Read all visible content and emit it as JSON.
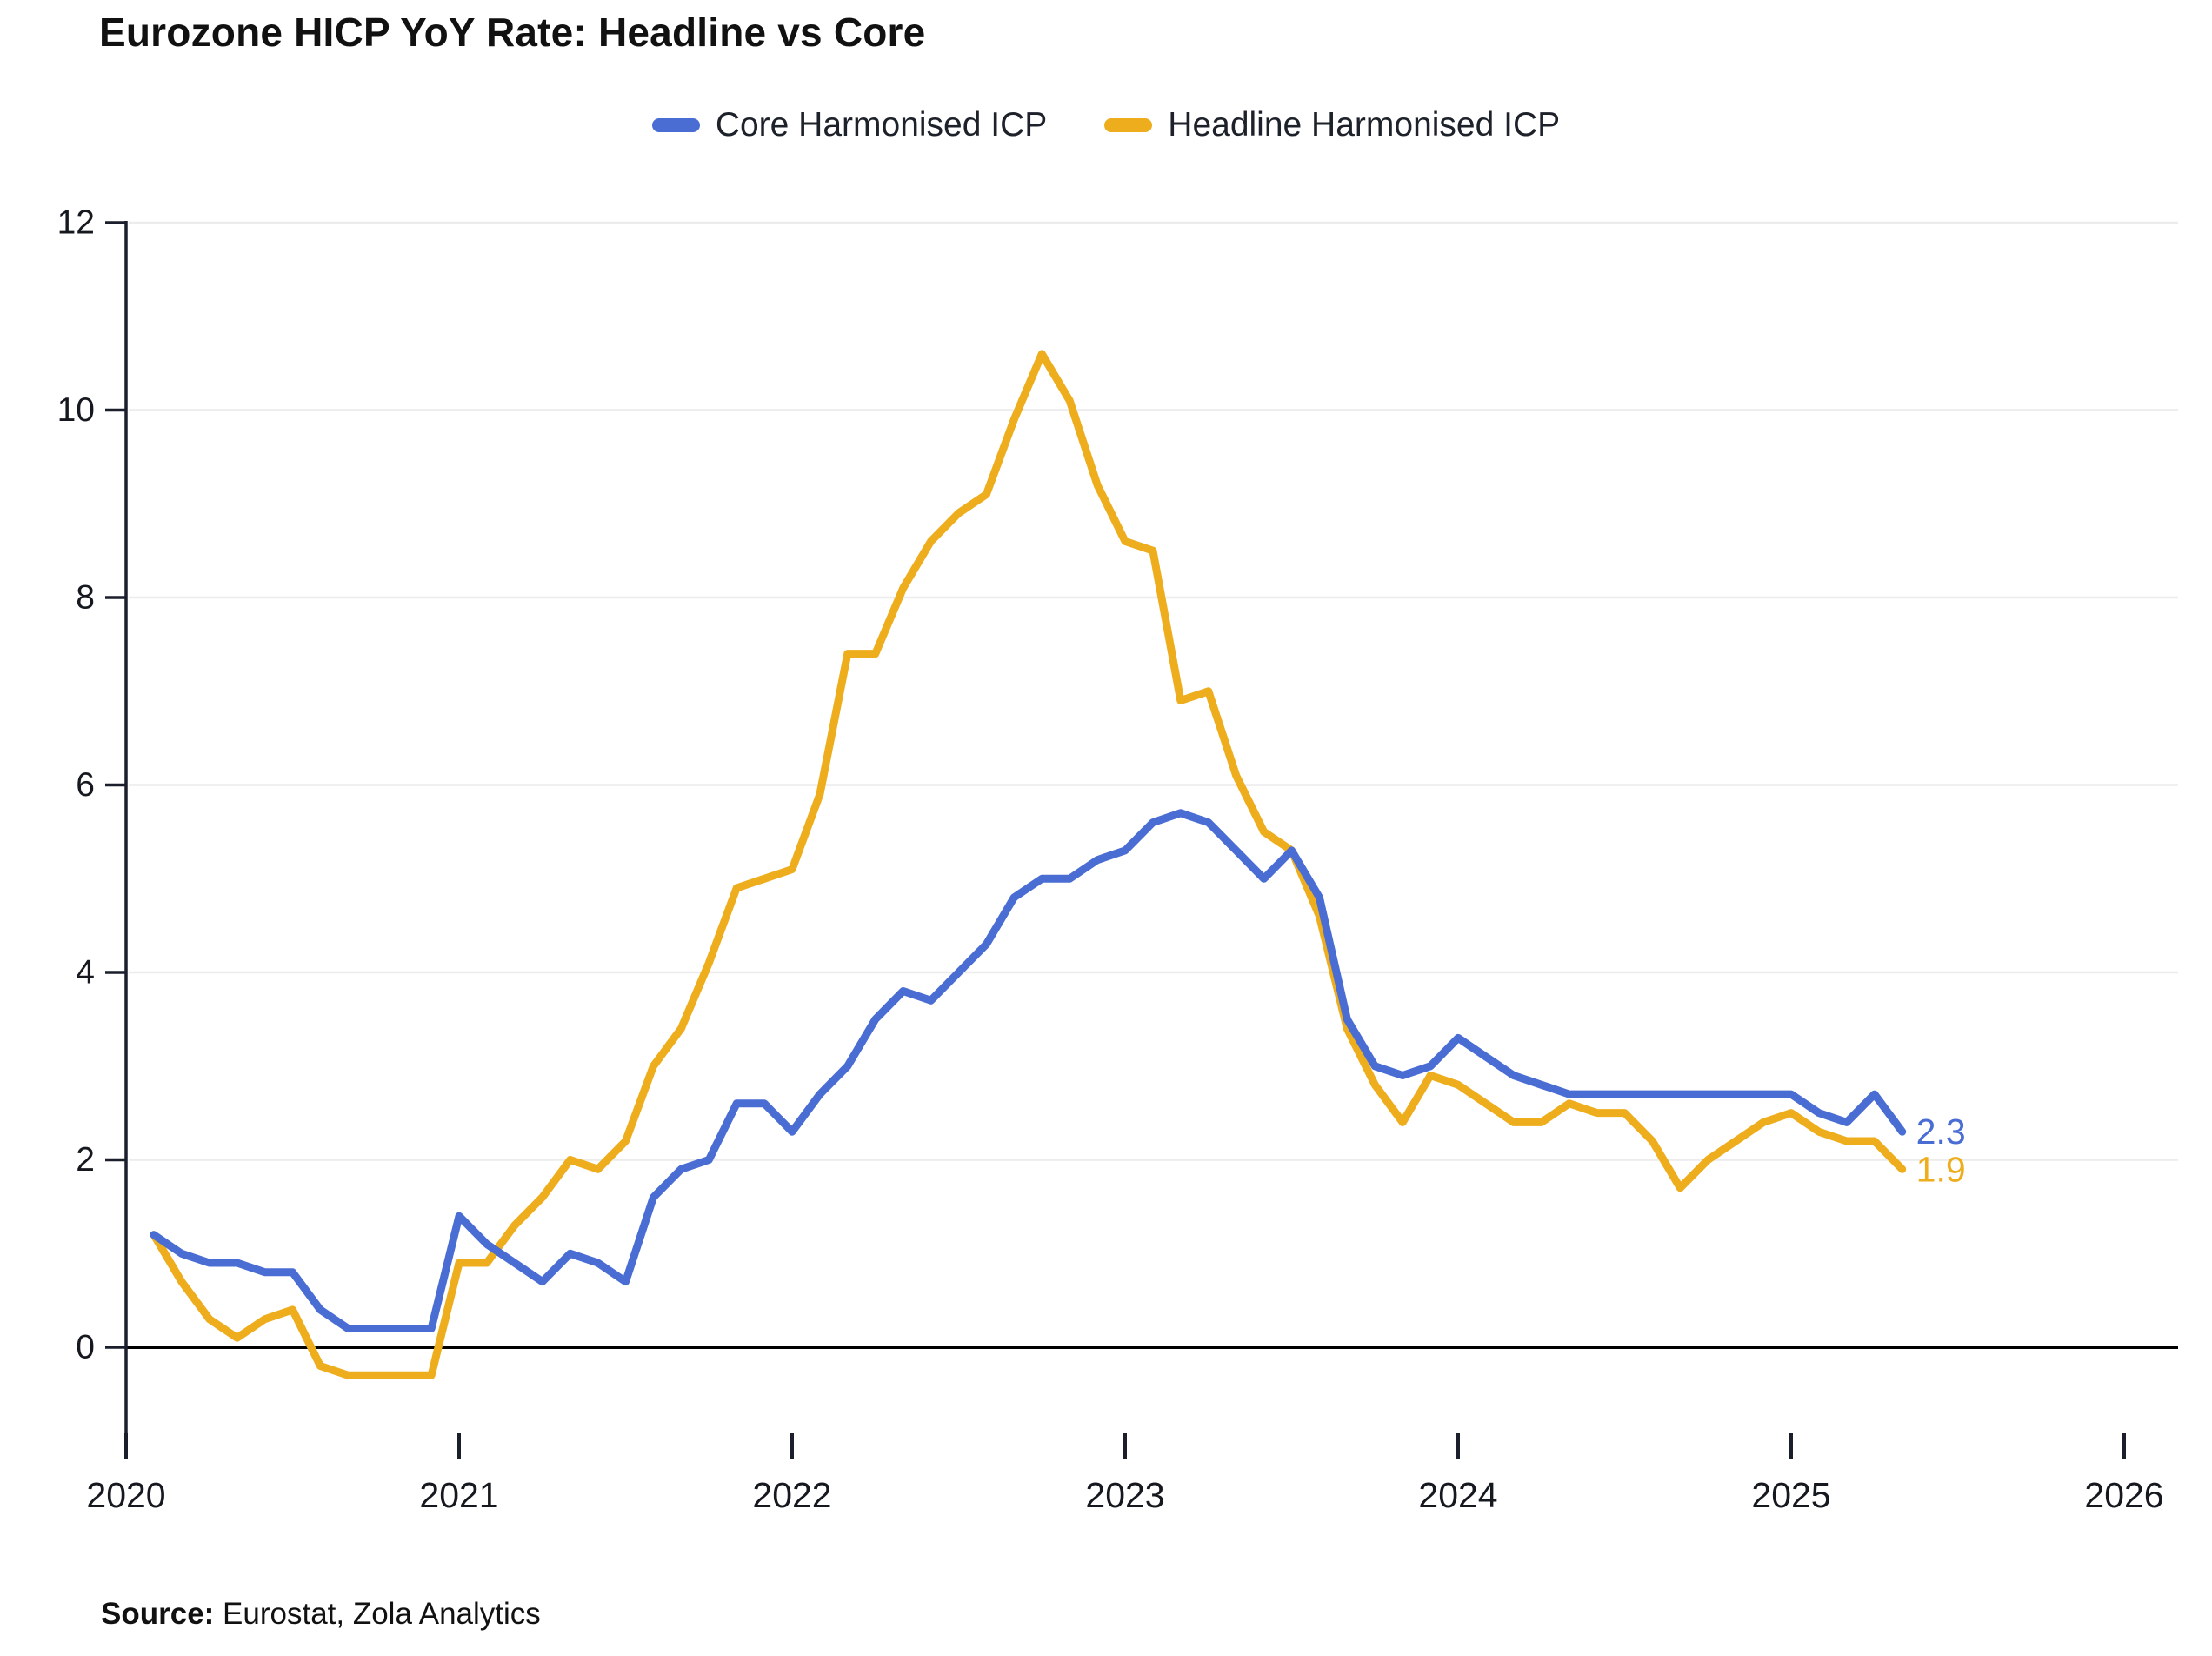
{
  "title": "Eurozone HICP YoY Rate: Headline vs Core",
  "source": {
    "label": "Source:",
    "text": "Eurostat, Zola Analytics"
  },
  "chart_data": {
    "type": "line",
    "title": "Eurozone HICP YoY Rate: Headline vs Core",
    "xlabel": "",
    "ylabel": "",
    "x_start_year": 2020,
    "x_start_month": 2,
    "x_frequency": "monthly",
    "x_ticks": [
      "2020",
      "2021",
      "2022",
      "2023",
      "2024",
      "2025",
      "2026"
    ],
    "y_ticks": [
      "0",
      "2",
      "4",
      "6",
      "8",
      "10",
      "12"
    ],
    "xlim": [
      2020,
      2026
    ],
    "ylim": [
      -1.1,
      12
    ],
    "grid": "horizontal",
    "zero_line": true,
    "legend_position": "top-center",
    "series": [
      {
        "name": "Headline Harmonised ICP",
        "color": "#eead1c",
        "end_label": "1.9",
        "values": [
          1.2,
          0.7,
          0.3,
          0.1,
          0.3,
          0.4,
          -0.2,
          -0.3,
          -0.3,
          -0.3,
          -0.3,
          0.9,
          0.9,
          1.3,
          1.6,
          2.0,
          1.9,
          2.2,
          3.0,
          3.4,
          4.1,
          4.9,
          5.0,
          5.1,
          5.9,
          7.4,
          7.4,
          8.1,
          8.6,
          8.9,
          9.1,
          9.9,
          10.6,
          10.1,
          9.2,
          8.6,
          8.5,
          6.9,
          7.0,
          6.1,
          5.5,
          5.3,
          4.6,
          3.4,
          2.8,
          2.4,
          2.9,
          2.8,
          2.6,
          2.4,
          2.4,
          2.6,
          2.5,
          2.5,
          2.2,
          1.7,
          2.0,
          2.2,
          2.4,
          2.5,
          2.3,
          2.2,
          2.2,
          1.9
        ]
      },
      {
        "name": "Core Harmonised ICP",
        "color": "#4a6dd4",
        "end_label": "2.3",
        "values": [
          1.2,
          1.0,
          0.9,
          0.9,
          0.8,
          0.8,
          0.4,
          0.2,
          0.2,
          0.2,
          0.2,
          1.4,
          1.1,
          0.9,
          0.7,
          1.0,
          0.9,
          0.7,
          1.6,
          1.9,
          2.0,
          2.6,
          2.6,
          2.3,
          2.7,
          3.0,
          3.5,
          3.8,
          3.7,
          4.0,
          4.3,
          4.8,
          5.0,
          5.0,
          5.2,
          5.3,
          5.6,
          5.7,
          5.6,
          5.3,
          5.0,
          5.3,
          4.8,
          3.5,
          3.0,
          2.9,
          3.0,
          3.3,
          3.1,
          2.9,
          2.8,
          2.7,
          2.7,
          2.7,
          2.7,
          2.7,
          2.7,
          2.7,
          2.7,
          2.7,
          2.5,
          2.4,
          2.7,
          2.3
        ]
      }
    ],
    "legend_order": [
      "Core Harmonised ICP",
      "Headline Harmonised ICP"
    ],
    "colors": {
      "grid": "#ececec",
      "axis": "#1a1f2b",
      "tick_label": "#15181e",
      "zero_line": "#000000"
    }
  }
}
